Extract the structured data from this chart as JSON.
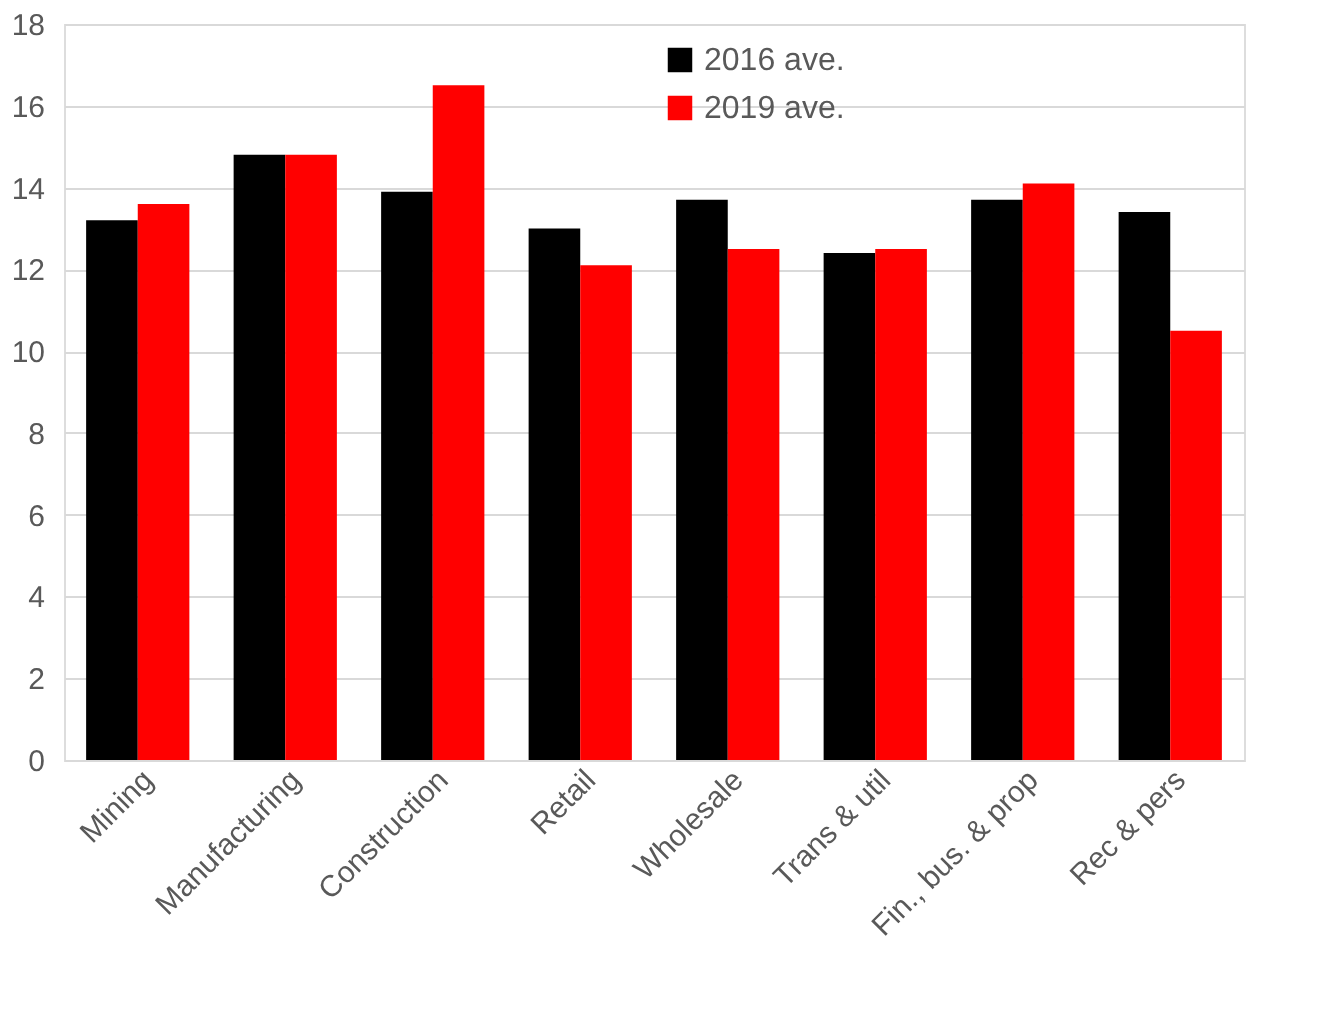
{
  "chart_data": {
    "type": "bar",
    "categories": [
      "Mining",
      "Manufacturing",
      "Construction",
      "Retail",
      "Wholesale",
      "Trans & util",
      "Fin., bus. & prop",
      "Rec & pers"
    ],
    "series": [
      {
        "name": "2016 ave.",
        "color": "#000000",
        "values": [
          13.2,
          14.8,
          13.9,
          13.0,
          13.7,
          12.4,
          13.7,
          13.4
        ]
      },
      {
        "name": "2019 ave.",
        "color": "#ff0000",
        "values": [
          13.6,
          14.8,
          16.5,
          12.1,
          12.5,
          12.5,
          14.1,
          10.5
        ]
      }
    ],
    "ylim": [
      0,
      18
    ],
    "yticks": [
      0,
      2,
      4,
      6,
      8,
      10,
      12,
      14,
      16,
      18
    ],
    "grid": "y",
    "legend": "top right"
  }
}
